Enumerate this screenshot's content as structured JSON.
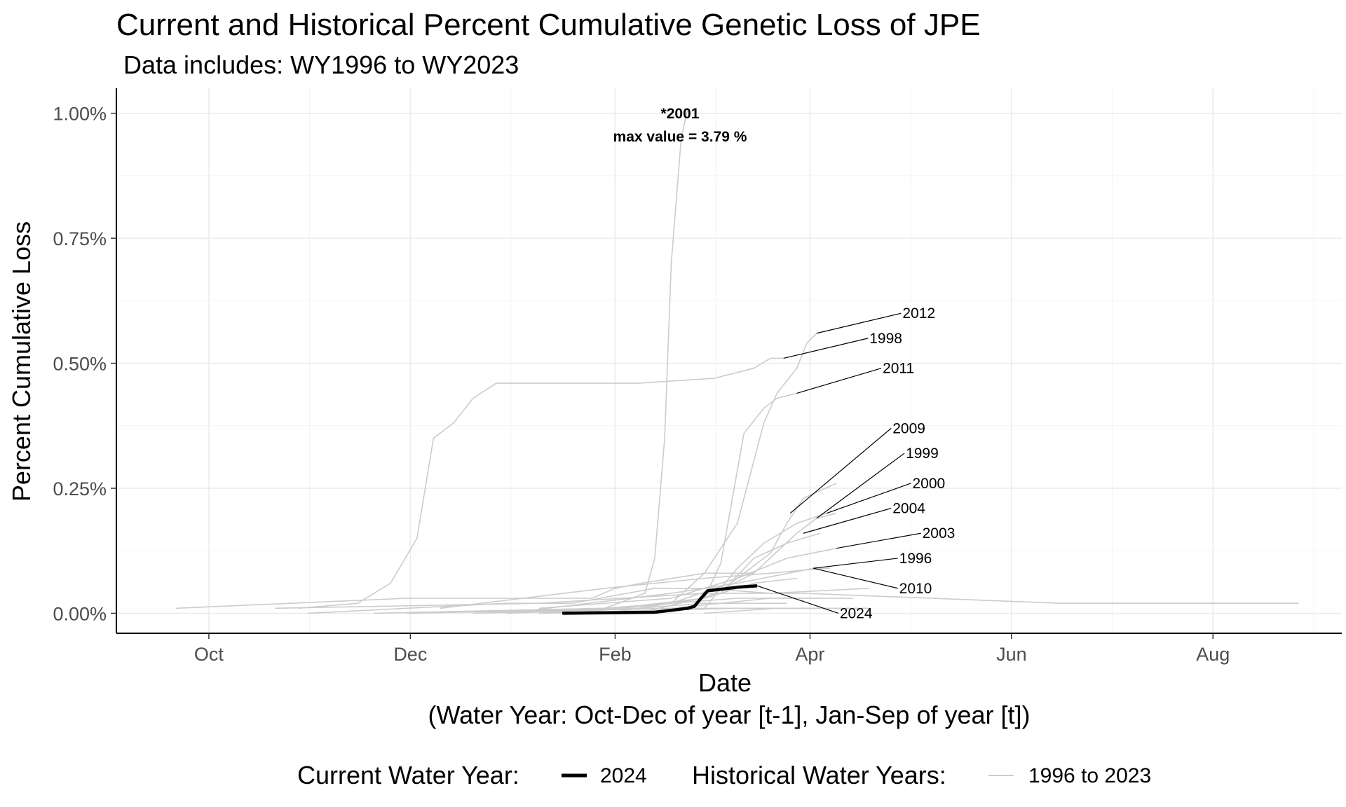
{
  "chart_data": {
    "type": "line",
    "title": "Current and Historical Percent Cumulative Genetic Loss of JPE",
    "subtitle": "Data includes: WY1996 to WY2023",
    "xlabel": "Date",
    "xlabel_sub": "(Water Year: Oct-Dec of year [t-1], Jan-Sep of year [t])",
    "ylabel": "Percent Cumulative Loss",
    "ylim": [
      -0.0004,
      0.0105
    ],
    "xlim_days": [
      -28,
      343
    ],
    "x_ticks": [
      {
        "label": "Oct",
        "day": 0
      },
      {
        "label": "Dec",
        "day": 61
      },
      {
        "label": "Feb",
        "day": 123
      },
      {
        "label": "Apr",
        "day": 182
      },
      {
        "label": "Jun",
        "day": 243
      },
      {
        "label": "Aug",
        "day": 304
      }
    ],
    "y_ticks": [
      {
        "label": "0.00%",
        "value": 0
      },
      {
        "label": "0.25%",
        "value": 0.0025
      },
      {
        "label": "0.50%",
        "value": 0.005
      },
      {
        "label": "0.75%",
        "value": 0.0075
      },
      {
        "label": "1.00%",
        "value": 0.01
      }
    ],
    "grid": true,
    "legend_placement": "bottom",
    "legend": {
      "current_label": "Current Water Year:",
      "current_key": "2024",
      "historical_label": "Historical Water Years:",
      "historical_key": "1996 to 2023"
    },
    "annotation": {
      "line1": "*2001",
      "line2": "max value = 3.79 %"
    },
    "colors": {
      "current": "#000000",
      "historical": "#cccccc",
      "grid": "#ebebeb"
    },
    "current_series": {
      "name": "2024",
      "points": [
        [
          107,
          0
        ],
        [
          135,
          2e-05
        ],
        [
          140,
          6e-05
        ],
        [
          145,
          0.0001
        ],
        [
          147,
          0.00014
        ],
        [
          149,
          0.0003
        ],
        [
          151,
          0.00045
        ],
        [
          155,
          0.00048
        ],
        [
          160,
          0.00052
        ],
        [
          166,
          0.00055
        ]
      ]
    },
    "historical_series": [
      {
        "name": "2001",
        "points": [
          [
            60,
            0
          ],
          [
            120,
            0.0001
          ],
          [
            132,
            0.0004
          ],
          [
            135,
            0.0011
          ],
          [
            138,
            0.0035
          ],
          [
            140,
            0.007
          ],
          [
            143,
            0.0095
          ],
          [
            145,
            0.0101
          ]
        ]
      },
      {
        "name": "2012",
        "points": [
          [
            110,
            0
          ],
          [
            140,
            0.0002
          ],
          [
            150,
            0.0008
          ],
          [
            160,
            0.0018
          ],
          [
            168,
            0.0038
          ],
          [
            172,
            0.0044
          ],
          [
            178,
            0.0049
          ],
          [
            181,
            0.0054
          ],
          [
            184,
            0.0056
          ]
        ]
      },
      {
        "name": "1998",
        "points": [
          [
            27,
            0.0001
          ],
          [
            45,
            0.0002
          ],
          [
            55,
            0.0006
          ],
          [
            63,
            0.0015
          ],
          [
            68,
            0.0035
          ],
          [
            74,
            0.0038
          ],
          [
            80,
            0.0043
          ],
          [
            87,
            0.0046
          ],
          [
            130,
            0.0046
          ],
          [
            153,
            0.0047
          ],
          [
            165,
            0.0049
          ],
          [
            170,
            0.0051
          ],
          [
            174,
            0.0051
          ]
        ]
      },
      {
        "name": "2011",
        "points": [
          [
            120,
            0
          ],
          [
            150,
            0.0003
          ],
          [
            155,
            0.001
          ],
          [
            162,
            0.0036
          ],
          [
            168,
            0.0041
          ],
          [
            172,
            0.0043
          ],
          [
            178,
            0.0044
          ]
        ]
      },
      {
        "name": "2009",
        "points": [
          [
            100,
            0
          ],
          [
            140,
            0.0002
          ],
          [
            158,
            0.0006
          ],
          [
            170,
            0.0012
          ],
          [
            175,
            0.0018
          ],
          [
            180,
            0.0023
          ],
          [
            190,
            0.0026
          ]
        ]
      },
      {
        "name": "1999",
        "points": [
          [
            110,
            0
          ],
          [
            150,
            0.0003
          ],
          [
            165,
            0.0008
          ],
          [
            178,
            0.0016
          ],
          [
            184,
            0.0019
          ],
          [
            190,
            0.002
          ]
        ]
      },
      {
        "name": "2000",
        "points": [
          [
            120,
            0
          ],
          [
            150,
            0.0001
          ],
          [
            160,
            0.0009
          ],
          [
            168,
            0.0014
          ],
          [
            178,
            0.0018
          ],
          [
            187,
            0.002
          ]
        ]
      },
      {
        "name": "2004",
        "points": [
          [
            130,
            0
          ],
          [
            155,
            0.0004
          ],
          [
            165,
            0.0011
          ],
          [
            175,
            0.0014
          ],
          [
            185,
            0.0016
          ]
        ]
      },
      {
        "name": "2003",
        "points": [
          [
            100,
            0.0001
          ],
          [
            140,
            0.0003
          ],
          [
            160,
            0.0007
          ],
          [
            175,
            0.0011
          ],
          [
            190,
            0.0013
          ]
        ]
      },
      {
        "name": "1996",
        "points": [
          [
            90,
            0
          ],
          [
            140,
            0.0004
          ],
          [
            160,
            0.0006
          ],
          [
            183,
            0.0009
          ],
          [
            188,
            0.0009
          ]
        ]
      },
      {
        "name": "2010",
        "points": [
          [
            70,
            0.0001
          ],
          [
            120,
            0.0005
          ],
          [
            150,
            0.0007
          ],
          [
            170,
            0.0008
          ],
          [
            186,
            0.0009
          ]
        ]
      },
      {
        "name": "",
        "points": [
          [
            -10,
            0.0001
          ],
          [
            60,
            0.0003
          ],
          [
            116,
            0.0003
          ],
          [
            123,
            0.0005
          ],
          [
            131,
            0.0006
          ],
          [
            150,
            0.0008
          ],
          [
            165,
            0.0008
          ]
        ]
      },
      {
        "name": "",
        "points": [
          [
            30,
            0
          ],
          [
            90,
            0.0002
          ],
          [
            110,
            0.0002
          ],
          [
            135,
            0.0005
          ],
          [
            150,
            0.0005
          ],
          [
            170,
            0.0004
          ],
          [
            200,
            0.0005
          ]
        ]
      },
      {
        "name": "",
        "points": [
          [
            20,
            0.0001
          ],
          [
            100,
            0.0002
          ],
          [
            150,
            0.0004
          ],
          [
            180,
            0.0004
          ],
          [
            258,
            0.0002
          ],
          [
            330,
            0.0002
          ]
        ]
      },
      {
        "name": "",
        "points": [
          [
            50,
            0
          ],
          [
            120,
            0.0001
          ],
          [
            160,
            0.0003
          ],
          [
            185,
            0.0003
          ]
        ]
      },
      {
        "name": "",
        "points": [
          [
            80,
            0
          ],
          [
            140,
            0.0001
          ],
          [
            170,
            0.0003
          ],
          [
            195,
            0.0003
          ]
        ]
      },
      {
        "name": "",
        "points": [
          [
            90,
            0
          ],
          [
            130,
            0.0001
          ],
          [
            150,
            0.0002
          ],
          [
            175,
            0.0002
          ]
        ]
      },
      {
        "name": "",
        "points": [
          [
            100,
            0
          ],
          [
            160,
            0.0001
          ],
          [
            185,
            0.0001
          ]
        ]
      },
      {
        "name": "",
        "points": [
          [
            60,
            0
          ],
          [
            140,
            0.0001
          ],
          [
            170,
            0.0001
          ],
          [
            200,
            0.0001
          ]
        ]
      },
      {
        "name": "",
        "points": [
          [
            150,
            0
          ],
          [
            172,
            0.0001
          ],
          [
            190,
            0.0001
          ]
        ]
      },
      {
        "name": "",
        "points": [
          [
            110,
            0
          ],
          [
            150,
            0.0003
          ],
          [
            165,
            0.0006
          ],
          [
            178,
            0.0007
          ]
        ]
      }
    ],
    "labels": [
      {
        "text": "2012",
        "series": "2012",
        "at": [
          184,
          0.0056
        ],
        "text_at": [
          210,
          0.006
        ]
      },
      {
        "text": "1998",
        "series": "1998",
        "at": [
          174,
          0.0051
        ],
        "text_at": [
          200,
          0.0055
        ]
      },
      {
        "text": "2011",
        "series": "2011",
        "at": [
          178,
          0.0044
        ],
        "text_at": [
          204,
          0.0049
        ]
      },
      {
        "text": "2009",
        "series": "2009",
        "at": [
          176,
          0.002
        ],
        "text_at": [
          207,
          0.0037
        ]
      },
      {
        "text": "1999",
        "series": "1999",
        "at": [
          184,
          0.0019
        ],
        "text_at": [
          211,
          0.0032
        ]
      },
      {
        "text": "2000",
        "series": "2000",
        "at": [
          187,
          0.002
        ],
        "text_at": [
          213,
          0.0026
        ]
      },
      {
        "text": "2004",
        "series": "2004",
        "at": [
          180,
          0.0016
        ],
        "text_at": [
          207,
          0.0021
        ]
      },
      {
        "text": "2003",
        "series": "2003",
        "at": [
          190,
          0.0013
        ],
        "text_at": [
          216,
          0.0016
        ]
      },
      {
        "text": "1996",
        "series": "1996",
        "at": [
          183,
          0.0009
        ],
        "text_at": [
          209,
          0.0011
        ]
      },
      {
        "text": "2010",
        "series": "2010",
        "at": [
          183,
          0.0009
        ],
        "text_at": [
          209,
          0.0005
        ]
      },
      {
        "text": "2024",
        "series": "2024",
        "at": [
          166,
          0.00055
        ],
        "text_at": [
          191,
          0.0
        ]
      }
    ]
  }
}
